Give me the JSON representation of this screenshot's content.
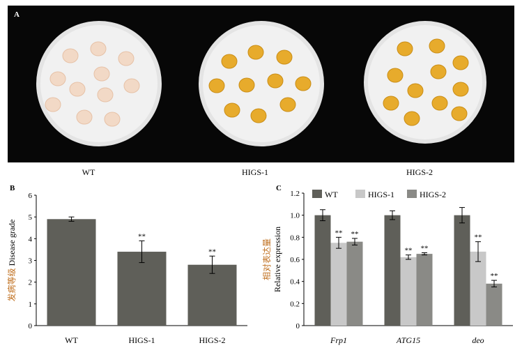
{
  "panel_a": {
    "letter": "A",
    "labels": [
      "WT",
      "HIGS-1",
      "HIGS-2"
    ],
    "colors": {
      "background": "#070707",
      "plate": "#e4e4e4",
      "medium": "#f1f1f1",
      "healthy_kernel": "#e7ab2c",
      "infected_kernel": "#f2d9c6"
    }
  },
  "chart_data": [
    {
      "panel": "B",
      "type": "bar",
      "ylabel_cn": "发病等级",
      "ylabel_en": "Disease grade",
      "categories": [
        "WT",
        "HIGS-1",
        "HIGS-2"
      ],
      "values": [
        4.9,
        3.4,
        2.8
      ],
      "errors": [
        0.1,
        0.5,
        0.4
      ],
      "significance": [
        "",
        "**",
        "**"
      ],
      "ylim": [
        0,
        6
      ],
      "yticks": [
        "0",
        "1",
        "2",
        "3",
        "4",
        "5",
        "6"
      ],
      "bar_color": "#5f5f59",
      "grid": false
    },
    {
      "panel": "C",
      "type": "bar",
      "ylabel_cn": "相对表达量",
      "ylabel_en": "Relative expression",
      "categories": [
        "Frp1",
        "ATG15",
        "deo"
      ],
      "series": [
        {
          "name": "WT",
          "values": [
            1.0,
            1.0,
            1.0
          ],
          "errors": [
            0.05,
            0.04,
            0.07
          ],
          "significance": [
            "",
            "",
            ""
          ],
          "color": "#5f5f59"
        },
        {
          "name": "HIGS-1",
          "values": [
            0.75,
            0.62,
            0.67
          ],
          "errors": [
            0.05,
            0.02,
            0.09
          ],
          "significance": [
            "**",
            "**",
            "**"
          ],
          "color": "#c8c8c8"
        },
        {
          "name": "HIGS-2",
          "values": [
            0.76,
            0.65,
            0.38
          ],
          "errors": [
            0.03,
            0.01,
            0.03
          ],
          "significance": [
            "**",
            "**",
            "**"
          ],
          "color": "#8a8a86"
        }
      ],
      "ylim": [
        0,
        1.2
      ],
      "yticks": [
        "0",
        "0.2",
        "0.4",
        "0.6",
        "0.8",
        "1.0",
        "1.2"
      ],
      "legend_position": "top-left",
      "grid": false
    }
  ]
}
